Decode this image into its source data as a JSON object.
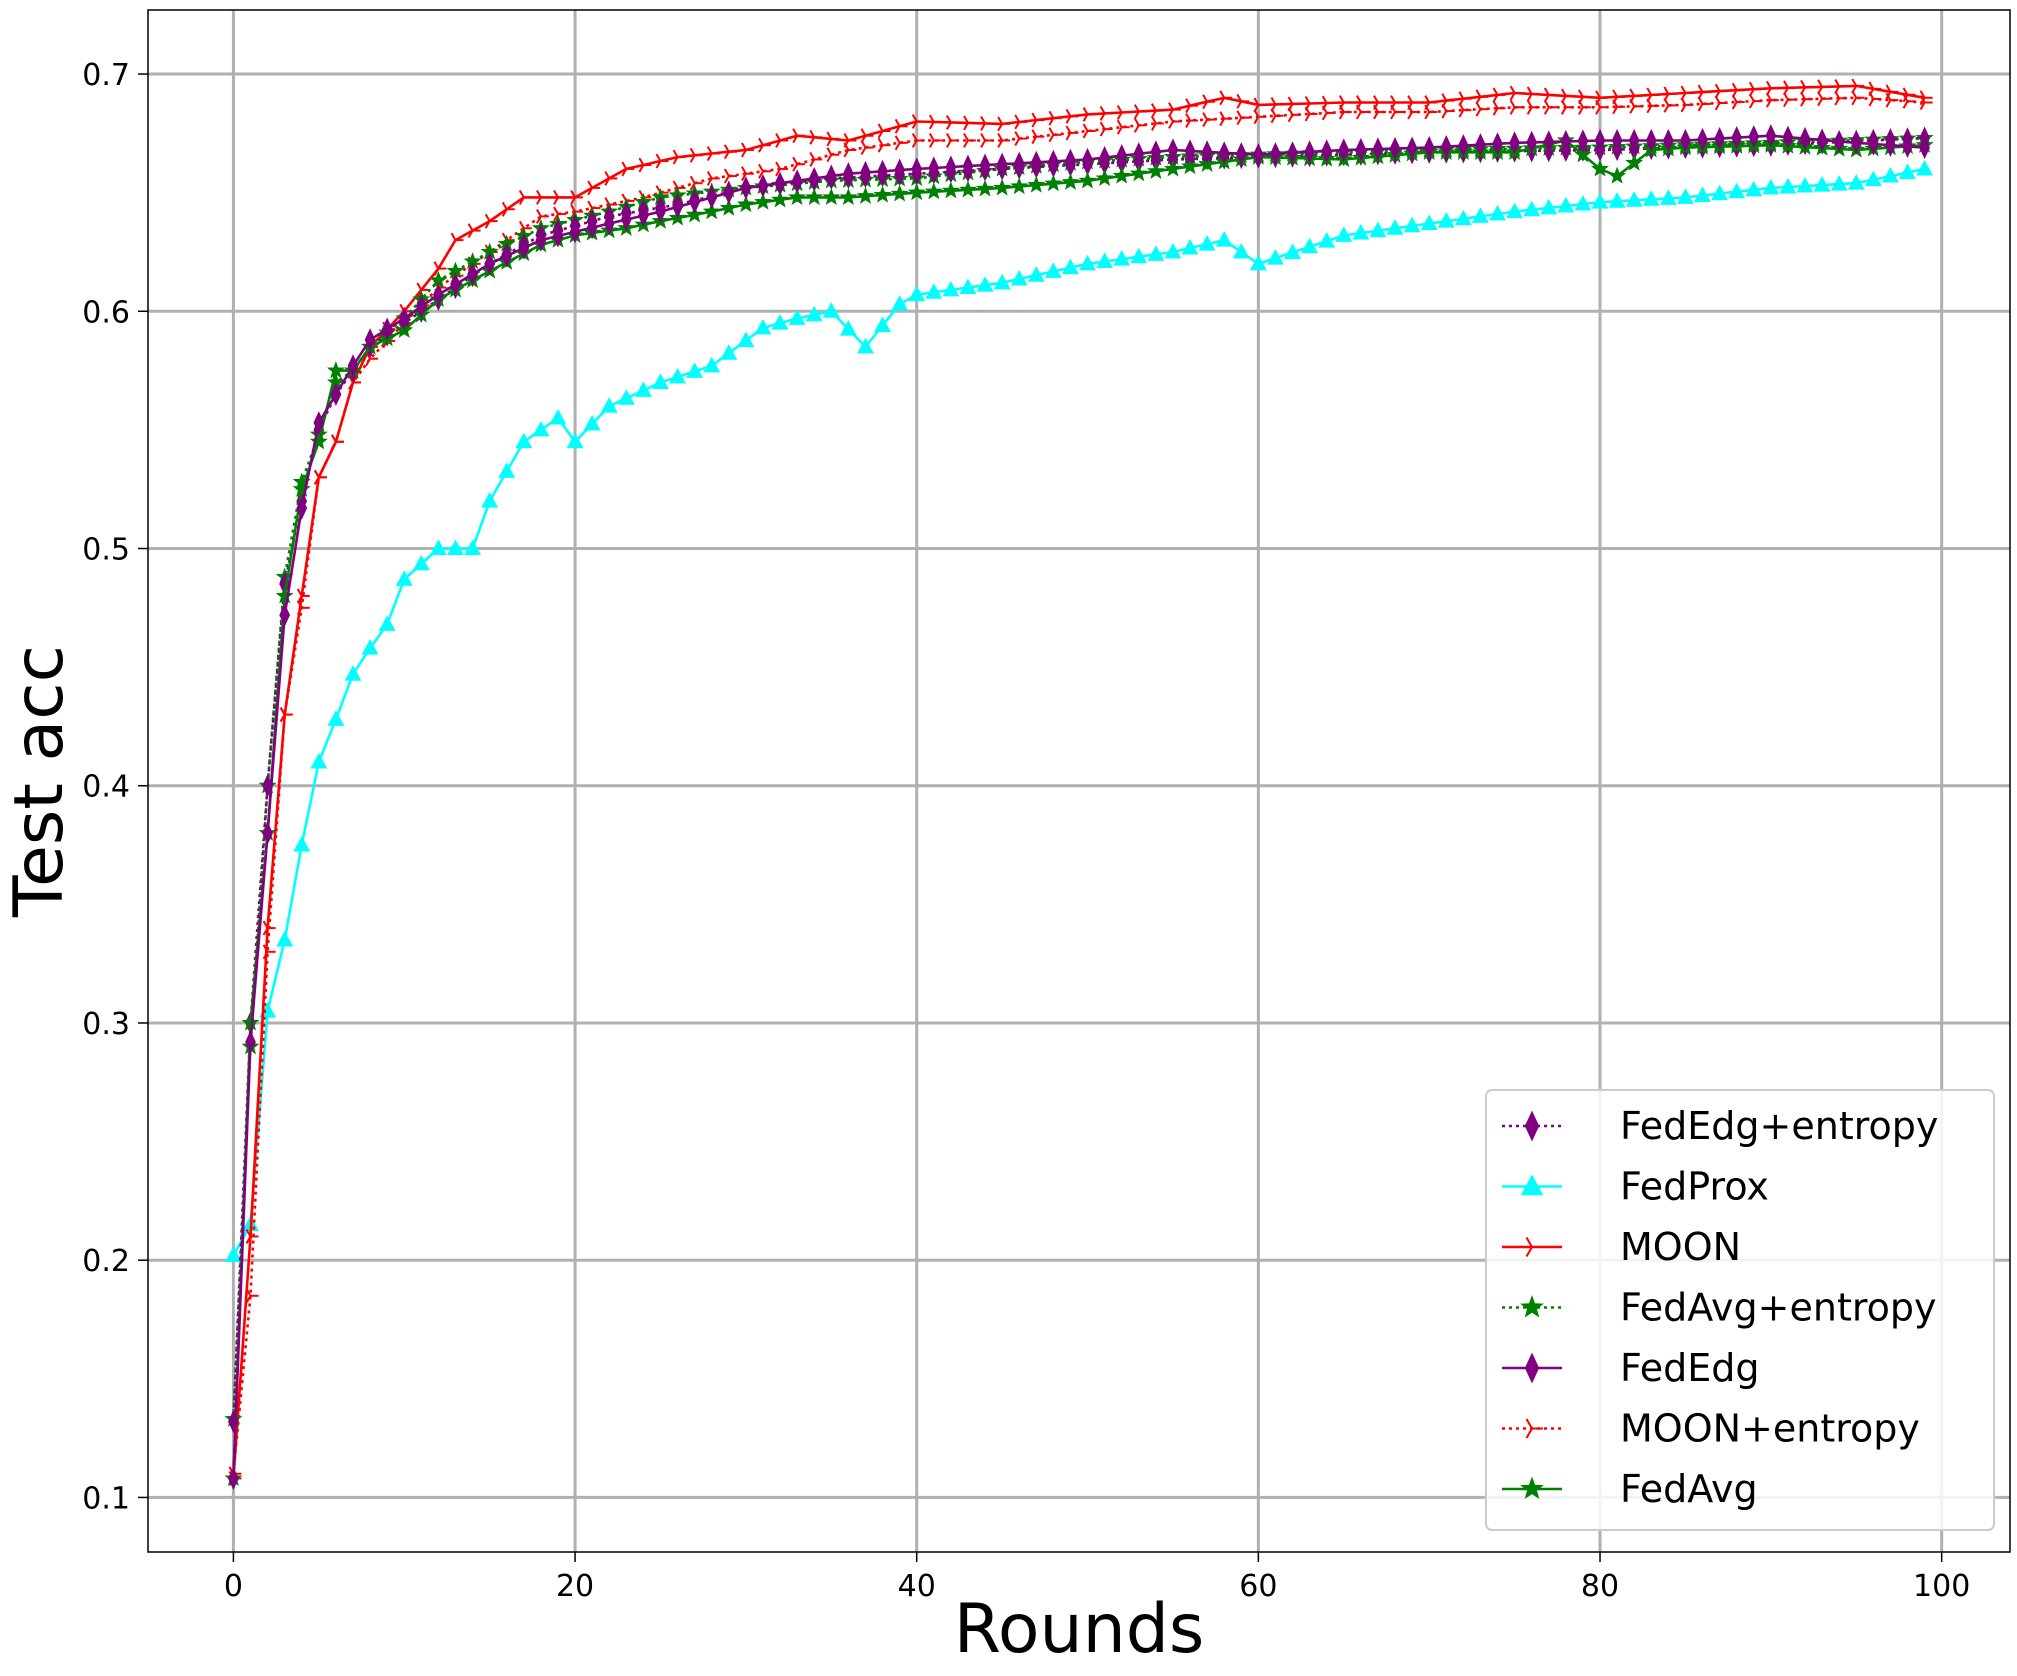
{
  "chart_data": {
    "type": "line",
    "xlabel": "Rounds",
    "ylabel": "Test acc",
    "xlim": [
      -5,
      104
    ],
    "ylim": [
      0.077,
      0.727
    ],
    "xticks": [
      0,
      20,
      40,
      60,
      80,
      100
    ],
    "xtick_labels": [
      "0",
      "20",
      "40",
      "60",
      "80",
      "100"
    ],
    "yticks": [
      0.1,
      0.2,
      0.3,
      0.4,
      0.5,
      0.6,
      0.7
    ],
    "ytick_labels": [
      "0.1",
      "0.2",
      "0.3",
      "0.4",
      "0.5",
      "0.6",
      "0.7"
    ],
    "grid": true,
    "legend_position": "lower-right",
    "series": [
      {
        "name": "FedEdg+entropy",
        "color": "#800080",
        "linestyle": "dotted",
        "marker": "diamond",
        "keypoints": [
          [
            0,
            0.132
          ],
          [
            1,
            0.3
          ],
          [
            2,
            0.4
          ],
          [
            3,
            0.485
          ],
          [
            4,
            0.52
          ],
          [
            5,
            0.55
          ],
          [
            6,
            0.565
          ],
          [
            7,
            0.575
          ],
          [
            8,
            0.585
          ],
          [
            10,
            0.595
          ],
          [
            12,
            0.605
          ],
          [
            15,
            0.62
          ],
          [
            18,
            0.632
          ],
          [
            22,
            0.64
          ],
          [
            26,
            0.645
          ],
          [
            30,
            0.652
          ],
          [
            35,
            0.656
          ],
          [
            40,
            0.658
          ],
          [
            45,
            0.66
          ],
          [
            50,
            0.662
          ],
          [
            55,
            0.664
          ],
          [
            60,
            0.665
          ],
          [
            70,
            0.667
          ],
          [
            80,
            0.668
          ],
          [
            90,
            0.67
          ],
          [
            99,
            0.673
          ]
        ]
      },
      {
        "name": "FedProx",
        "color": "#00FFFF",
        "linestyle": "solid",
        "marker": "triangle",
        "keypoints": [
          [
            0,
            0.202
          ],
          [
            1,
            0.215
          ],
          [
            2,
            0.305
          ],
          [
            3,
            0.335
          ],
          [
            4,
            0.375
          ],
          [
            5,
            0.41
          ],
          [
            6,
            0.428
          ],
          [
            7,
            0.447
          ],
          [
            8,
            0.458
          ],
          [
            9,
            0.468
          ],
          [
            10,
            0.487
          ],
          [
            12,
            0.5
          ],
          [
            14,
            0.5
          ],
          [
            15,
            0.52
          ],
          [
            17,
            0.545
          ],
          [
            19,
            0.555
          ],
          [
            20,
            0.545
          ],
          [
            22,
            0.56
          ],
          [
            25,
            0.57
          ],
          [
            28,
            0.577
          ],
          [
            31,
            0.593
          ],
          [
            33,
            0.597
          ],
          [
            35,
            0.6
          ],
          [
            37,
            0.585
          ],
          [
            39,
            0.603
          ],
          [
            40,
            0.607
          ],
          [
            45,
            0.612
          ],
          [
            50,
            0.62
          ],
          [
            55,
            0.625
          ],
          [
            58,
            0.63
          ],
          [
            60,
            0.62
          ],
          [
            65,
            0.632
          ],
          [
            70,
            0.637
          ],
          [
            75,
            0.642
          ],
          [
            80,
            0.646
          ],
          [
            85,
            0.648
          ],
          [
            90,
            0.652
          ],
          [
            95,
            0.654
          ],
          [
            99,
            0.66
          ]
        ]
      },
      {
        "name": "MOON",
        "color": "#FF0000",
        "linestyle": "solid",
        "marker": "tri_right",
        "keypoints": [
          [
            0,
            0.108
          ],
          [
            1,
            0.21
          ],
          [
            2,
            0.34
          ],
          [
            3,
            0.43
          ],
          [
            4,
            0.48
          ],
          [
            5,
            0.53
          ],
          [
            6,
            0.545
          ],
          [
            7,
            0.57
          ],
          [
            8,
            0.585
          ],
          [
            10,
            0.6
          ],
          [
            12,
            0.618
          ],
          [
            13,
            0.63
          ],
          [
            15,
            0.638
          ],
          [
            17,
            0.648
          ],
          [
            20,
            0.648
          ],
          [
            23,
            0.66
          ],
          [
            26,
            0.665
          ],
          [
            30,
            0.668
          ],
          [
            33,
            0.674
          ],
          [
            36,
            0.672
          ],
          [
            40,
            0.68
          ],
          [
            45,
            0.679
          ],
          [
            50,
            0.683
          ],
          [
            55,
            0.685
          ],
          [
            58,
            0.69
          ],
          [
            60,
            0.687
          ],
          [
            65,
            0.688
          ],
          [
            70,
            0.688
          ],
          [
            75,
            0.692
          ],
          [
            80,
            0.69
          ],
          [
            85,
            0.692
          ],
          [
            90,
            0.694
          ],
          [
            95,
            0.695
          ],
          [
            99,
            0.69
          ]
        ]
      },
      {
        "name": "FedAvg+entropy",
        "color": "#008000",
        "linestyle": "dotted",
        "marker": "star",
        "keypoints": [
          [
            0,
            0.133
          ],
          [
            1,
            0.29
          ],
          [
            2,
            0.4
          ],
          [
            3,
            0.488
          ],
          [
            4,
            0.528
          ],
          [
            5,
            0.548
          ],
          [
            6,
            0.57
          ],
          [
            7,
            0.575
          ],
          [
            8,
            0.585
          ],
          [
            10,
            0.597
          ],
          [
            12,
            0.613
          ],
          [
            15,
            0.625
          ],
          [
            18,
            0.635
          ],
          [
            22,
            0.642
          ],
          [
            25,
            0.648
          ],
          [
            30,
            0.652
          ],
          [
            35,
            0.655
          ],
          [
            40,
            0.656
          ],
          [
            45,
            0.66
          ],
          [
            50,
            0.663
          ],
          [
            55,
            0.665
          ],
          [
            60,
            0.666
          ],
          [
            70,
            0.668
          ],
          [
            80,
            0.669
          ],
          [
            90,
            0.671
          ],
          [
            99,
            0.673
          ]
        ]
      },
      {
        "name": "FedEdg",
        "color": "#800080",
        "linestyle": "solid",
        "marker": "diamond",
        "keypoints": [
          [
            0,
            0.108
          ],
          [
            1,
            0.292
          ],
          [
            2,
            0.38
          ],
          [
            3,
            0.472
          ],
          [
            4,
            0.517
          ],
          [
            5,
            0.553
          ],
          [
            6,
            0.565
          ],
          [
            7,
            0.577
          ],
          [
            8,
            0.588
          ],
          [
            10,
            0.597
          ],
          [
            12,
            0.607
          ],
          [
            15,
            0.62
          ],
          [
            18,
            0.63
          ],
          [
            22,
            0.637
          ],
          [
            25,
            0.642
          ],
          [
            28,
            0.648
          ],
          [
            30,
            0.652
          ],
          [
            33,
            0.655
          ],
          [
            36,
            0.658
          ],
          [
            40,
            0.66
          ],
          [
            45,
            0.662
          ],
          [
            50,
            0.664
          ],
          [
            55,
            0.668
          ],
          [
            60,
            0.666
          ],
          [
            65,
            0.668
          ],
          [
            70,
            0.669
          ],
          [
            75,
            0.671
          ],
          [
            80,
            0.672
          ],
          [
            85,
            0.672
          ],
          [
            90,
            0.674
          ],
          [
            95,
            0.671
          ],
          [
            99,
            0.669
          ]
        ]
      },
      {
        "name": "MOON+entropy",
        "color": "#FF0000",
        "linestyle": "dotted",
        "marker": "tri_right",
        "keypoints": [
          [
            0,
            0.11
          ],
          [
            1,
            0.185
          ],
          [
            2,
            0.33
          ],
          [
            3,
            0.43
          ],
          [
            4,
            0.475
          ],
          [
            5,
            0.53
          ],
          [
            6,
            0.545
          ],
          [
            7,
            0.57
          ],
          [
            8,
            0.58
          ],
          [
            10,
            0.595
          ],
          [
            12,
            0.61
          ],
          [
            15,
            0.625
          ],
          [
            18,
            0.64
          ],
          [
            20,
            0.642
          ],
          [
            24,
            0.648
          ],
          [
            28,
            0.656
          ],
          [
            32,
            0.66
          ],
          [
            36,
            0.668
          ],
          [
            40,
            0.672
          ],
          [
            45,
            0.672
          ],
          [
            50,
            0.676
          ],
          [
            55,
            0.68
          ],
          [
            60,
            0.682
          ],
          [
            65,
            0.684
          ],
          [
            70,
            0.684
          ],
          [
            75,
            0.686
          ],
          [
            80,
            0.686
          ],
          [
            85,
            0.687
          ],
          [
            90,
            0.689
          ],
          [
            95,
            0.69
          ],
          [
            99,
            0.688
          ]
        ]
      },
      {
        "name": "FedAvg",
        "color": "#008000",
        "linestyle": "solid",
        "marker": "star",
        "keypoints": [
          [
            0,
            0.108
          ],
          [
            1,
            0.3
          ],
          [
            2,
            0.38
          ],
          [
            3,
            0.48
          ],
          [
            4,
            0.525
          ],
          [
            5,
            0.545
          ],
          [
            6,
            0.575
          ],
          [
            7,
            0.575
          ],
          [
            8,
            0.585
          ],
          [
            10,
            0.592
          ],
          [
            12,
            0.605
          ],
          [
            15,
            0.617
          ],
          [
            18,
            0.628
          ],
          [
            20,
            0.632
          ],
          [
            23,
            0.635
          ],
          [
            25,
            0.638
          ],
          [
            28,
            0.642
          ],
          [
            30,
            0.645
          ],
          [
            33,
            0.648
          ],
          [
            36,
            0.648
          ],
          [
            40,
            0.65
          ],
          [
            45,
            0.652
          ],
          [
            50,
            0.655
          ],
          [
            55,
            0.66
          ],
          [
            60,
            0.665
          ],
          [
            65,
            0.664
          ],
          [
            70,
            0.667
          ],
          [
            75,
            0.667
          ],
          [
            78,
            0.672
          ],
          [
            80,
            0.66
          ],
          [
            81,
            0.657
          ],
          [
            83,
            0.668
          ],
          [
            85,
            0.669
          ],
          [
            90,
            0.67
          ],
          [
            95,
            0.668
          ],
          [
            99,
            0.67
          ]
        ]
      }
    ]
  }
}
